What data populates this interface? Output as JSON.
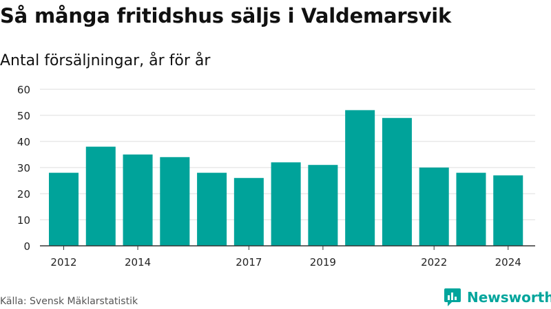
{
  "title": "Så många fritidshus säljs i Valdemarsvik",
  "subtitle": "Antal försäljningar, år för år",
  "source": "Källa: Svensk Mäklarstatistik",
  "brand": {
    "name": "Newsworthy",
    "icon": "newsworthy-logo-icon"
  },
  "colors": {
    "bar": "#00a39a",
    "brand": "#00a59c",
    "grid": "#dddddd",
    "axis": "#333333"
  },
  "chart_data": {
    "type": "bar",
    "categories": [
      "2012",
      "2013",
      "2014",
      "2015",
      "2016",
      "2017",
      "2018",
      "2019",
      "2020",
      "2021",
      "2022",
      "2023",
      "2024"
    ],
    "values": [
      28,
      38,
      35,
      34,
      28,
      26,
      32,
      31,
      52,
      49,
      30,
      28,
      27
    ],
    "x_tick_labels": [
      "2012",
      "2014",
      "2017",
      "2019",
      "2022",
      "2024"
    ],
    "y_ticks": [
      0,
      10,
      20,
      30,
      40,
      50,
      60
    ],
    "ylim": [
      0,
      60
    ],
    "grid": true,
    "legend": "none"
  }
}
